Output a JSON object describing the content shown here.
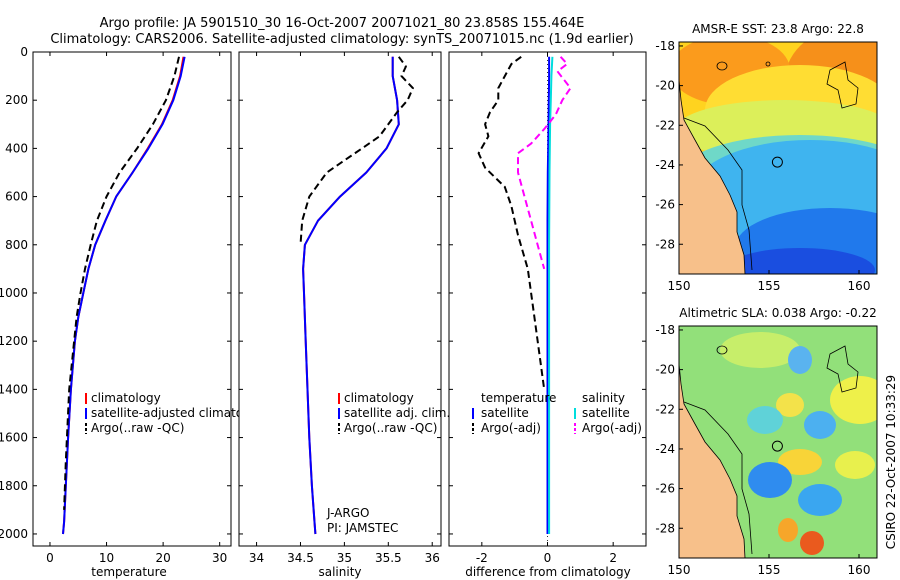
{
  "header": {
    "title_line1": "Argo profile: JA 5901510_30 16-Oct-2007 20071021_80 23.858S 155.464E",
    "title_line2": "Climatology: CARS2006. Satellite-adjusted climatology: synTS_20071015.nc (1.9d earlier)"
  },
  "footer": {
    "credit": "CSIRO 22-Oct-2007 10:33:29"
  },
  "colors": {
    "climatology": "#ff0000",
    "satellite": "#0000ff",
    "argo": "#000000",
    "sat_diff": "#00dddd",
    "argo_adj_diff": "#ff00ff",
    "land": "#f7c08a"
  },
  "chart_data": [
    {
      "id": "temperature",
      "type": "line",
      "xlabel": "temperature",
      "ylabel": "",
      "xlim": [
        -3,
        32
      ],
      "ylim": [
        2050,
        0
      ],
      "xticks": [
        0,
        10,
        20,
        30
      ],
      "yticks": [
        0,
        200,
        400,
        600,
        800,
        1000,
        1200,
        1400,
        1600,
        1800,
        2000
      ],
      "legend": {
        "position": "lower-right",
        "entries": [
          "climatology",
          "satellite-adjusted climatology",
          "Argo(..raw -QC)"
        ]
      },
      "series": [
        {
          "name": "climatology",
          "style": "solid",
          "x": [
            23.6,
            23.0,
            21.7,
            19.8,
            17.3,
            14.6,
            11.7,
            9.8,
            8.0,
            6.8,
            5.9,
            5.0,
            4.4,
            3.7,
            3.2,
            2.8,
            2.5,
            2.3
          ],
          "y": [
            20,
            100,
            200,
            300,
            400,
            500,
            600,
            700,
            800,
            900,
            1000,
            1100,
            1200,
            1400,
            1600,
            1800,
            1950,
            2000
          ]
        },
        {
          "name": "satellite-adjusted climatology",
          "style": "solid",
          "x": [
            23.8,
            23.1,
            21.8,
            19.9,
            17.4,
            14.6,
            11.7,
            9.8,
            8.0,
            6.8,
            5.9,
            5.0,
            4.4,
            3.7,
            3.2,
            2.8,
            2.5,
            2.3
          ],
          "y": [
            20,
            100,
            200,
            300,
            400,
            500,
            600,
            700,
            800,
            900,
            1000,
            1100,
            1200,
            1400,
            1600,
            1800,
            1950,
            2000
          ]
        },
        {
          "name": "Argo(..raw -QC)",
          "style": "dashed",
          "x": [
            22.8,
            22.0,
            20.5,
            18.2,
            15.4,
            12.3,
            10.0,
            8.3,
            7.2,
            6.2,
            5.4,
            4.7,
            3.4,
            2.8,
            2.5
          ],
          "y": [
            20,
            100,
            200,
            300,
            400,
            500,
            600,
            700,
            800,
            900,
            1000,
            1100,
            1400,
            1700,
            1900
          ]
        }
      ]
    },
    {
      "id": "salinity",
      "type": "line",
      "xlabel": "salinity",
      "ylabel": "",
      "xlim": [
        33.8,
        36.1
      ],
      "ylim": [
        2050,
        0
      ],
      "xticks": [
        34,
        34.5,
        35,
        35.5,
        36
      ],
      "legend": {
        "position": "lower-right",
        "entries": [
          "climatology",
          "satellite adj. clim.",
          "Argo(..raw -QC)"
        ]
      },
      "annotation": [
        "J-ARGO",
        "PI: JAMSTEC"
      ],
      "series": [
        {
          "name": "climatology",
          "style": "solid",
          "x": [
            35.55,
            35.55,
            35.6,
            35.62,
            35.48,
            35.25,
            34.95,
            34.7,
            34.55,
            34.53,
            34.54,
            34.56,
            34.58,
            34.6,
            34.63,
            34.66,
            34.67
          ],
          "y": [
            20,
            100,
            200,
            300,
            400,
            500,
            600,
            700,
            800,
            900,
            1000,
            1200,
            1400,
            1600,
            1800,
            1950,
            2000
          ]
        },
        {
          "name": "satellite adj. clim.",
          "style": "solid",
          "x": [
            35.55,
            35.55,
            35.6,
            35.62,
            35.48,
            35.25,
            34.95,
            34.7,
            34.55,
            34.53,
            34.54,
            34.56,
            34.58,
            34.6,
            34.63,
            34.66,
            34.67
          ],
          "y": [
            20,
            100,
            200,
            300,
            400,
            500,
            600,
            700,
            800,
            900,
            1000,
            1200,
            1400,
            1600,
            1800,
            1950,
            2000
          ]
        },
        {
          "name": "Argo(..raw -QC)",
          "style": "dashed",
          "x": [
            35.62,
            35.7,
            35.65,
            35.78,
            35.72,
            35.6,
            35.4,
            35.2,
            35.0,
            34.8,
            34.6,
            34.52,
            34.5
          ],
          "y": [
            20,
            60,
            100,
            150,
            200,
            250,
            350,
            400,
            450,
            500,
            600,
            700,
            800
          ]
        }
      ]
    },
    {
      "id": "difference",
      "type": "line",
      "xlabel": "difference from climatology",
      "ylabel": "",
      "xlim": [
        -3,
        3
      ],
      "ylim": [
        2050,
        0
      ],
      "xticks": [
        -2,
        0,
        2
      ],
      "legend": {
        "position": "lower",
        "columns": [
          {
            "header": "temperature",
            "entries": [
              "satellite",
              "Argo(-adj)"
            ]
          },
          {
            "header": "salinity",
            "entries": [
              "satellite",
              "Argo(-adj)"
            ]
          }
        ]
      },
      "series": [
        {
          "name": "temperature satellite",
          "style": "solid",
          "x": [
            0.05,
            0.05,
            0.04,
            0.03,
            0.02,
            0.01,
            0.0,
            0.0,
            0.0
          ],
          "y": [
            20,
            100,
            200,
            300,
            400,
            500,
            700,
            1000,
            2000
          ]
        },
        {
          "name": "temperature Argo(-adj)",
          "style": "dashed",
          "x": [
            -0.8,
            -1.1,
            -1.3,
            -1.5,
            -1.5,
            -1.75,
            -1.9,
            -1.8,
            -2.1,
            -1.9,
            -1.3,
            -1.1,
            -0.9,
            -0.6,
            -0.4,
            -0.1
          ],
          "y": [
            20,
            50,
            100,
            150,
            200,
            250,
            300,
            350,
            420,
            480,
            560,
            640,
            760,
            900,
            1100,
            1400
          ]
        },
        {
          "name": "salinity satellite",
          "style": "solid",
          "x": [
            0.15,
            0.12,
            0.1,
            0.08,
            0.06,
            0.05,
            0.05,
            0.05
          ],
          "y": [
            20,
            100,
            200,
            300,
            500,
            800,
            1500,
            2000
          ]
        },
        {
          "name": "salinity Argo(-adj)",
          "style": "dashed",
          "x": [
            0.4,
            0.6,
            0.3,
            0.7,
            0.45,
            0.25,
            -0.1,
            -0.5,
            -0.9,
            -0.9,
            -0.7,
            -0.5,
            -0.3,
            -0.1
          ],
          "y": [
            20,
            50,
            80,
            150,
            200,
            260,
            320,
            380,
            420,
            500,
            600,
            700,
            800,
            900
          ]
        }
      ]
    },
    {
      "id": "sst_map",
      "type": "heatmap",
      "title": "AMSR-E SST: 23.8 Argo: 22.8",
      "xlim": [
        150,
        161
      ],
      "ylim": [
        -29.5,
        -17.8
      ],
      "xticks": [
        150,
        155,
        160
      ],
      "yticks": [
        -18,
        -20,
        -22,
        -24,
        -26,
        -28
      ],
      "argo_position": [
        155.464,
        -23.858
      ]
    },
    {
      "id": "sla_map",
      "type": "heatmap",
      "title": "Altimetric SLA: 0.038 Argo: -0.22",
      "xlim": [
        150,
        161
      ],
      "ylim": [
        -29.5,
        -17.8
      ],
      "xticks": [
        150,
        155,
        160
      ],
      "yticks": [
        -18,
        -20,
        -22,
        -24,
        -26,
        -28
      ],
      "argo_position": [
        155.464,
        -23.858
      ]
    }
  ]
}
